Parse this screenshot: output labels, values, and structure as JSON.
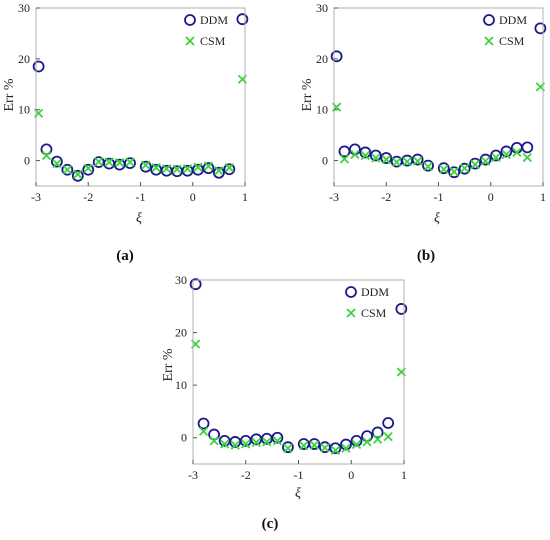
{
  "colors": {
    "ddm": "#1a1a8c",
    "csm": "#3bd43b",
    "axis": "#000000"
  },
  "chart_data": [
    {
      "type": "scatter",
      "panel_label": "(a)",
      "xlabel": "ξ",
      "ylabel": "Err %",
      "xlim": [
        -3,
        1
      ],
      "ylim": [
        -5,
        30
      ],
      "xticks": [
        -3,
        -2,
        -1,
        0,
        1
      ],
      "yticks": [
        0,
        10,
        20,
        30
      ],
      "grid": false,
      "legend_position": "top-right",
      "series": [
        {
          "name": "DDM",
          "marker": "circle",
          "x": [
            -2.95,
            -2.8,
            -2.6,
            -2.4,
            -2.2,
            -2.0,
            -1.8,
            -1.6,
            -1.4,
            -1.2,
            -0.9,
            -0.7,
            -0.5,
            -0.3,
            -0.1,
            0.1,
            0.3,
            0.5,
            0.7,
            0.95
          ],
          "y": [
            18.5,
            2.2,
            -0.2,
            -1.8,
            -3.0,
            -1.8,
            -0.3,
            -0.6,
            -0.8,
            -0.5,
            -1.2,
            -1.8,
            -2.0,
            -2.1,
            -2.0,
            -1.8,
            -1.5,
            -2.4,
            -1.7,
            27.8
          ]
        },
        {
          "name": "CSM",
          "marker": "x",
          "x": [
            -2.95,
            -2.8,
            -2.6,
            -2.4,
            -2.2,
            -2.0,
            -1.8,
            -1.6,
            -1.4,
            -1.2,
            -0.9,
            -0.7,
            -0.5,
            -0.3,
            -0.1,
            0.1,
            0.3,
            0.5,
            0.7,
            0.95
          ],
          "y": [
            9.3,
            1.0,
            -0.6,
            -1.8,
            -2.7,
            -1.5,
            -0.2,
            -0.3,
            -0.4,
            -0.3,
            -0.9,
            -1.4,
            -1.6,
            -1.7,
            -1.6,
            -1.3,
            -1.1,
            -2.0,
            -1.4,
            16.0
          ]
        }
      ]
    },
    {
      "type": "scatter",
      "panel_label": "(b)",
      "xlabel": "ξ",
      "ylabel": "Err %",
      "xlim": [
        -3,
        1
      ],
      "ylim": [
        -5,
        30
      ],
      "xticks": [
        -3,
        -2,
        -1,
        0,
        1
      ],
      "yticks": [
        0,
        10,
        20,
        30
      ],
      "grid": false,
      "legend_position": "top-right",
      "series": [
        {
          "name": "DDM",
          "marker": "circle",
          "x": [
            -2.95,
            -2.8,
            -2.6,
            -2.4,
            -2.2,
            -2.0,
            -1.8,
            -1.6,
            -1.4,
            -1.2,
            -0.9,
            -0.7,
            -0.5,
            -0.3,
            -0.1,
            0.1,
            0.3,
            0.5,
            0.7,
            0.95
          ],
          "y": [
            20.5,
            1.8,
            2.2,
            1.6,
            1.0,
            0.5,
            -0.2,
            0.0,
            0.2,
            -1.0,
            -1.5,
            -2.3,
            -1.6,
            -0.6,
            0.2,
            1.0,
            1.8,
            2.5,
            2.6,
            26.0
          ]
        },
        {
          "name": "CSM",
          "marker": "x",
          "x": [
            -2.95,
            -2.8,
            -2.6,
            -2.4,
            -2.2,
            -2.0,
            -1.8,
            -1.6,
            -1.4,
            -1.2,
            -0.9,
            -0.7,
            -0.5,
            -0.3,
            -0.1,
            0.1,
            0.3,
            0.5,
            0.7,
            0.95
          ],
          "y": [
            10.5,
            0.3,
            1.2,
            1.0,
            0.5,
            0.2,
            -0.3,
            -0.2,
            -0.1,
            -1.2,
            -1.7,
            -2.2,
            -1.5,
            -0.8,
            -0.1,
            0.6,
            1.2,
            1.6,
            0.6,
            14.5
          ]
        }
      ]
    },
    {
      "type": "scatter",
      "panel_label": "(c)",
      "xlabel": "ξ",
      "ylabel": "Err %",
      "xlim": [
        -3,
        1
      ],
      "ylim": [
        -5,
        30
      ],
      "xticks": [
        -3,
        -2,
        -1,
        0,
        1
      ],
      "yticks": [
        0,
        10,
        20,
        30
      ],
      "grid": false,
      "legend_position": "top-right",
      "series": [
        {
          "name": "DDM",
          "marker": "circle",
          "x": [
            -2.95,
            -2.8,
            -2.6,
            -2.4,
            -2.2,
            -2.0,
            -1.8,
            -1.6,
            -1.4,
            -1.2,
            -0.9,
            -0.7,
            -0.5,
            -0.3,
            -0.1,
            0.1,
            0.3,
            0.5,
            0.7,
            0.95
          ],
          "y": [
            29.2,
            2.7,
            0.6,
            -0.6,
            -0.8,
            -0.6,
            -0.3,
            -0.2,
            0.0,
            -1.8,
            -1.2,
            -1.2,
            -1.8,
            -2.0,
            -1.3,
            -0.6,
            0.3,
            1.0,
            2.8,
            24.5
          ]
        },
        {
          "name": "CSM",
          "marker": "x",
          "x": [
            -2.95,
            -2.8,
            -2.6,
            -2.4,
            -2.2,
            -2.0,
            -1.8,
            -1.6,
            -1.4,
            -1.2,
            -0.9,
            -0.7,
            -0.5,
            -0.3,
            -0.1,
            0.1,
            0.3,
            0.5,
            0.7,
            0.95
          ],
          "y": [
            17.8,
            1.2,
            -0.6,
            -1.2,
            -1.4,
            -1.2,
            -0.9,
            -0.8,
            -0.6,
            -2.0,
            -1.5,
            -1.4,
            -1.9,
            -2.4,
            -2.0,
            -1.3,
            -0.8,
            -0.3,
            0.2,
            12.5
          ]
        }
      ]
    }
  ]
}
